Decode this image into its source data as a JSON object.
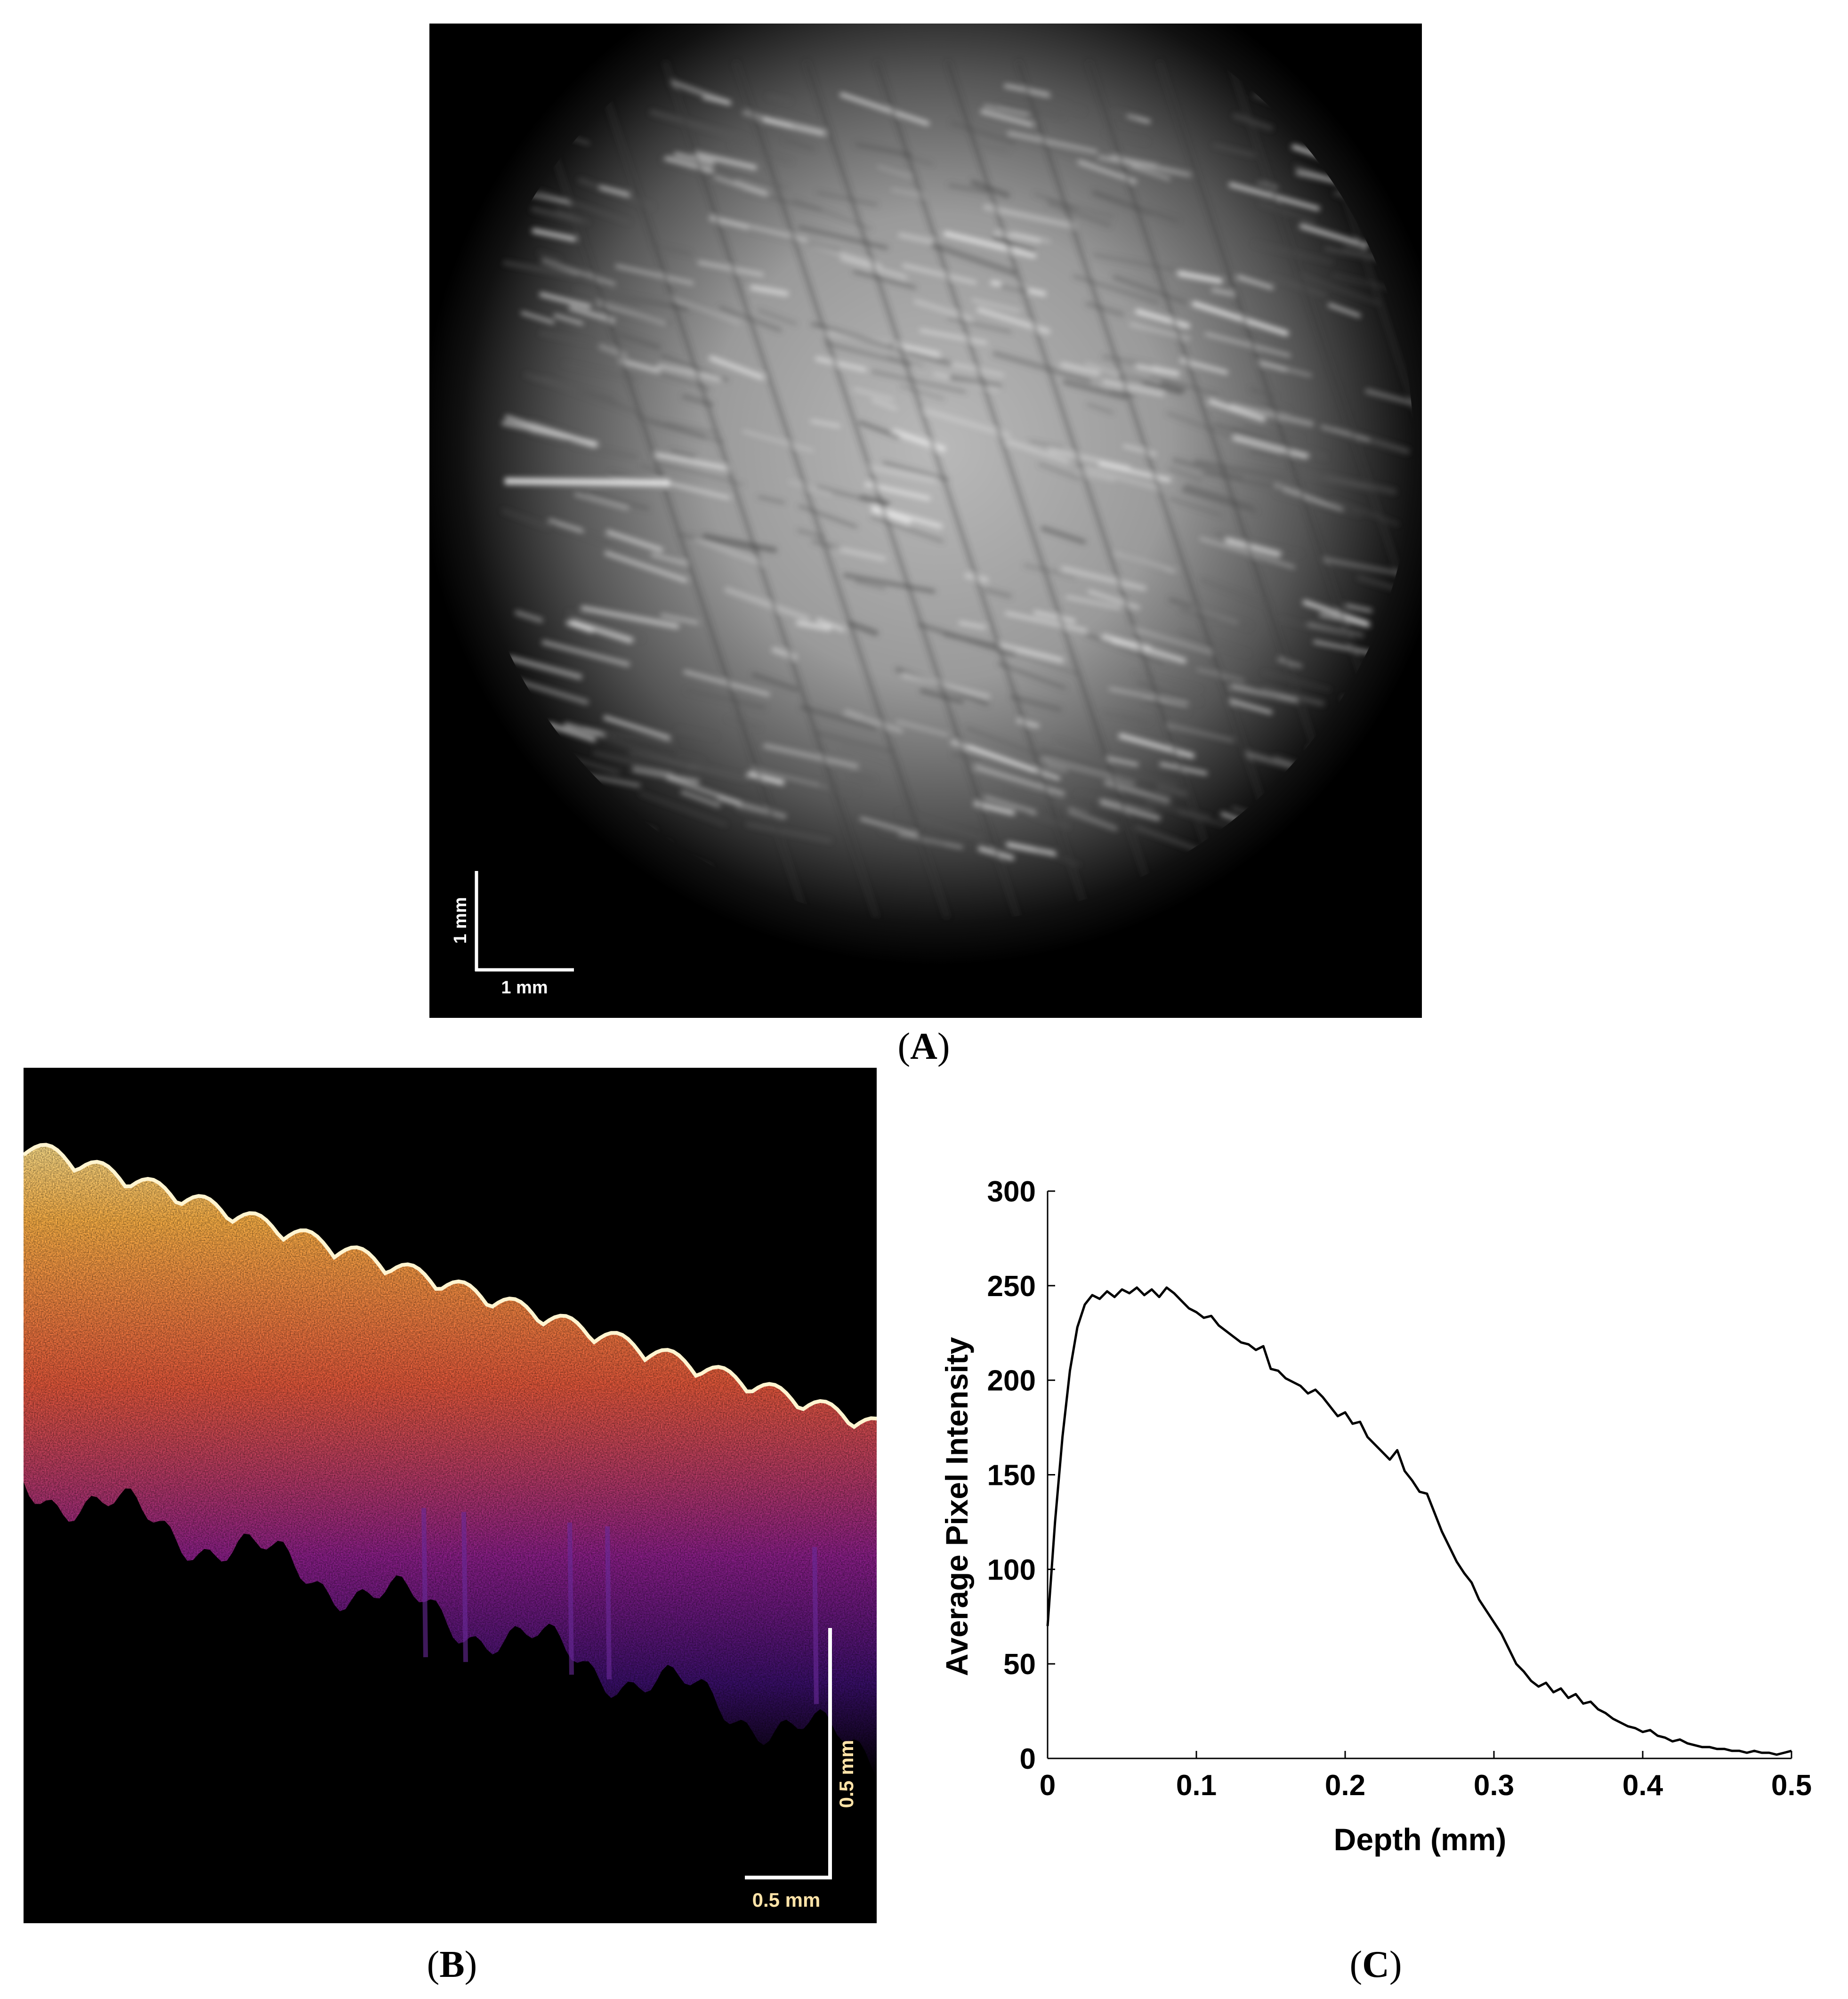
{
  "figure": {
    "panels": [
      {
        "id": "A",
        "caption_open": "(",
        "caption_letter": "A",
        "caption_close": ")",
        "description_kind": "en-face grayscale microscope image",
        "scale_bar_vertical_label": "1 mm",
        "scale_bar_horizontal_label": "1 mm"
      },
      {
        "id": "B",
        "caption_open": "(",
        "caption_letter": "B",
        "caption_close": ")",
        "description_kind": "cross-sectional OCT B-scan, inferno colormap",
        "scale_bar_vertical_label": "0.5 mm",
        "scale_bar_horizontal_label": "0.5 mm"
      },
      {
        "id": "C",
        "caption_open": "(",
        "caption_letter": "C",
        "caption_close": ")"
      }
    ]
  },
  "colors": {
    "panel_a_background": "#000000",
    "panel_b_background": "#000000",
    "oct_bright": "#ffd36a",
    "oct_mid": "#e8593c",
    "oct_dim": "#5a1b8c",
    "scale_bar_a": "#ffffff",
    "scale_bar_b": "#ffffff",
    "scale_label_b": "#ffe3a8",
    "plot_line": "#000000"
  },
  "chart_data": {
    "type": "line",
    "xlabel": "Depth (mm)",
    "ylabel": "Average Pixel Intensity",
    "xlim": [
      0,
      0.5
    ],
    "ylim": [
      0,
      300
    ],
    "xticks": [
      "0",
      "0.1",
      "0.2",
      "0.3",
      "0.4",
      "0.5"
    ],
    "yticks": [
      "0",
      "50",
      "100",
      "150",
      "200",
      "250",
      "300"
    ],
    "grid": false,
    "series": [
      {
        "x": [
          0,
          0.005,
          0.01,
          0.015,
          0.02,
          0.025,
          0.03,
          0.035,
          0.04,
          0.045,
          0.05,
          0.055,
          0.06,
          0.065,
          0.07,
          0.075,
          0.08,
          0.085,
          0.09,
          0.095,
          0.1,
          0.105,
          0.11,
          0.115,
          0.12,
          0.125,
          0.13,
          0.135,
          0.14,
          0.145,
          0.15,
          0.155,
          0.16,
          0.165,
          0.17,
          0.175,
          0.18,
          0.185,
          0.19,
          0.195,
          0.2,
          0.205,
          0.21,
          0.215,
          0.22,
          0.225,
          0.23,
          0.235,
          0.24,
          0.245,
          0.25,
          0.255,
          0.26,
          0.265,
          0.27,
          0.275,
          0.28,
          0.285,
          0.29,
          0.295,
          0.3,
          0.305,
          0.31,
          0.315,
          0.32,
          0.325,
          0.33,
          0.335,
          0.34,
          0.345,
          0.35,
          0.355,
          0.36,
          0.365,
          0.37,
          0.375,
          0.38,
          0.385,
          0.39,
          0.395,
          0.4,
          0.405,
          0.41,
          0.415,
          0.42,
          0.425,
          0.43,
          0.435,
          0.44,
          0.445,
          0.45,
          0.455,
          0.46,
          0.465,
          0.47,
          0.475,
          0.48,
          0.485,
          0.49,
          0.495,
          0.5
        ],
        "values": [
          70,
          125,
          170,
          205,
          228,
          240,
          245,
          243,
          247,
          244,
          248,
          246,
          249,
          245,
          248,
          244,
          249,
          246,
          242,
          238,
          236,
          233,
          234,
          229,
          226,
          223,
          220,
          219,
          216,
          218,
          206,
          205,
          201,
          199,
          197,
          193,
          195,
          191,
          186,
          181,
          183,
          177,
          178,
          170,
          166,
          162,
          158,
          163,
          152,
          147,
          141,
          140,
          130,
          120,
          112,
          104,
          98,
          93,
          84,
          78,
          72,
          66,
          58,
          50,
          46,
          41,
          38,
          40,
          35,
          37,
          32,
          34,
          29,
          30,
          26,
          24,
          21,
          19,
          17,
          16,
          14,
          15,
          12,
          11,
          9,
          10,
          8,
          7,
          6,
          6,
          5,
          5,
          4,
          4,
          3,
          4,
          3,
          3,
          2,
          3,
          4
        ]
      }
    ]
  }
}
